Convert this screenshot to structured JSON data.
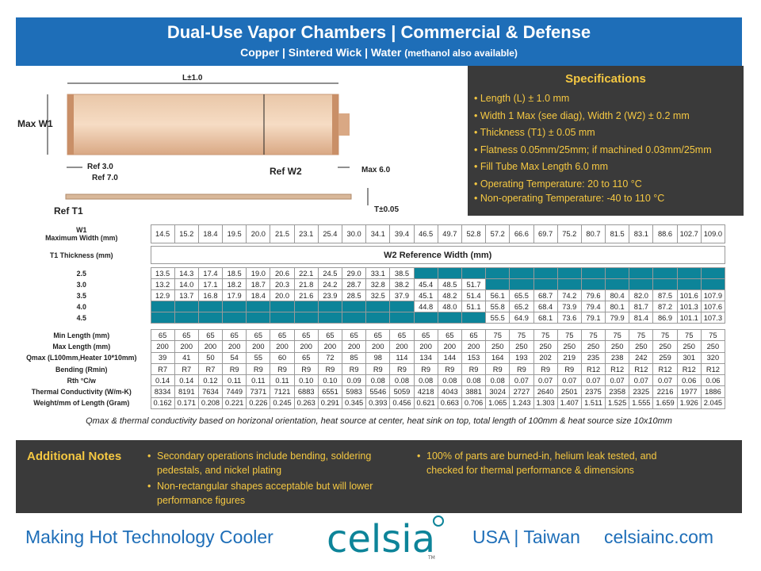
{
  "header": {
    "title": "Dual-Use Vapor Chambers | Commercial & Defense",
    "subtitle": "Copper | Sintered Wick | Water",
    "subtitle_note": "(methanol also available)"
  },
  "diagram": {
    "l": "L±1.0",
    "maxw1": "Max W1",
    "ref3": "Ref 3.0",
    "ref7": "Ref 7.0",
    "refw2": "Ref W2",
    "max6": "Max 6.0",
    "reft1": "Ref T1",
    "t005": "T±0.05"
  },
  "specs": {
    "title": "Specifications",
    "items": [
      "Length (L) ± 1.0 mm",
      "Width 1 Max (see diag), Width 2 (W2) ± 0.2 mm",
      "Thickness (T1) ± 0.05 mm",
      "Flatness 0.05mm/25mm; if machined  0.03mm/25mm",
      "Fill Tube Max Length 6.0 mm",
      "Operating Temperature: 20 to 110 °C",
      "Non-operating Temperature: -40 to 110 °C"
    ]
  },
  "table1": {
    "w1": "W1",
    "maxw": "Maximum Width (mm)",
    "values": [
      "14.5",
      "15.2",
      "18.4",
      "19.5",
      "20.0",
      "21.5",
      "23.1",
      "25.4",
      "30.0",
      "34.1",
      "39.4",
      "46.5",
      "49.7",
      "52.8",
      "57.2",
      "66.6",
      "69.7",
      "75.2",
      "80.7",
      "81.5",
      "83.1",
      "88.6",
      "102.7",
      "109.0"
    ]
  },
  "table2": {
    "t1": "T1 Thickness (mm)",
    "w2ref": "W2 Reference Width (mm)",
    "rows": [
      {
        "label": "2.5",
        "values": [
          "13.5",
          "14.3",
          "17.4",
          "18.5",
          "19.0",
          "20.6",
          "22.1",
          "24.5",
          "29.0",
          "33.1",
          "38.5",
          "",
          "",
          "",
          "",
          "",
          "",
          "",
          "",
          "",
          "",
          "",
          "",
          ""
        ]
      },
      {
        "label": "3.0",
        "values": [
          "13.2",
          "14.0",
          "17.1",
          "18.2",
          "18.7",
          "20.3",
          "21.8",
          "24.2",
          "28.7",
          "32.8",
          "38.2",
          "45.4",
          "48.5",
          "51.7",
          "",
          "",
          "",
          "",
          "",
          "",
          "",
          "",
          "",
          ""
        ]
      },
      {
        "label": "3.5",
        "values": [
          "12.9",
          "13.7",
          "16.8",
          "17.9",
          "18.4",
          "20.0",
          "21.6",
          "23.9",
          "28.5",
          "32.5",
          "37.9",
          "45.1",
          "48.2",
          "51.4",
          "56.1",
          "65.5",
          "68.7",
          "74.2",
          "79.6",
          "80.4",
          "82.0",
          "87.5",
          "101.6",
          "107.9"
        ]
      },
      {
        "label": "4.0",
        "values": [
          "",
          "",
          "",
          "",
          "",
          "",
          "",
          "",
          "",
          "",
          "",
          "44.8",
          "48.0",
          "51.1",
          "55.8",
          "65.2",
          "68.4",
          "73.9",
          "79.4",
          "80.1",
          "81.7",
          "87.2",
          "101.3",
          "107.6"
        ]
      },
      {
        "label": "4.5",
        "values": [
          "",
          "",
          "",
          "",
          "",
          "",
          "",
          "",
          "",
          "",
          "",
          "",
          "",
          "",
          "55.5",
          "64.9",
          "68.1",
          "73.6",
          "79.1",
          "79.9",
          "81.4",
          "86.9",
          "101.1",
          "107.3"
        ]
      }
    ]
  },
  "table3": {
    "rows": [
      {
        "label": "Min Length (mm)",
        "values": [
          "65",
          "65",
          "65",
          "65",
          "65",
          "65",
          "65",
          "65",
          "65",
          "65",
          "65",
          "65",
          "65",
          "65",
          "75",
          "75",
          "75",
          "75",
          "75",
          "75",
          "75",
          "75",
          "75",
          "75"
        ]
      },
      {
        "label": "Max Length (mm)",
        "values": [
          "200",
          "200",
          "200",
          "200",
          "200",
          "200",
          "200",
          "200",
          "200",
          "200",
          "200",
          "200",
          "200",
          "200",
          "250",
          "250",
          "250",
          "250",
          "250",
          "250",
          "250",
          "250",
          "250",
          "250"
        ]
      },
      {
        "label": "Qmax (L100mm,Heater 10*10mm)",
        "values": [
          "39",
          "41",
          "50",
          "54",
          "55",
          "60",
          "65",
          "72",
          "85",
          "98",
          "114",
          "134",
          "144",
          "153",
          "164",
          "193",
          "202",
          "219",
          "235",
          "238",
          "242",
          "259",
          "301",
          "320"
        ]
      },
      {
        "label": "Bending (Rmin)",
        "values": [
          "R7",
          "R7",
          "R7",
          "R9",
          "R9",
          "R9",
          "R9",
          "R9",
          "R9",
          "R9",
          "R9",
          "R9",
          "R9",
          "R9",
          "R9",
          "R9",
          "R9",
          "R9",
          "R12",
          "R12",
          "R12",
          "R12",
          "R12",
          "R12"
        ]
      },
      {
        "label": "Rth °C/w",
        "values": [
          "0.14",
          "0.14",
          "0.12",
          "0.11",
          "0.11",
          "0.11",
          "0.10",
          "0.10",
          "0.09",
          "0.08",
          "0.08",
          "0.08",
          "0.08",
          "0.08",
          "0.08",
          "0.07",
          "0.07",
          "0.07",
          "0.07",
          "0.07",
          "0.07",
          "0.07",
          "0.06",
          "0.06"
        ]
      },
      {
        "label": "Thermal Conductivity (W/m-K)",
        "values": [
          "8334",
          "8191",
          "7634",
          "7449",
          "7371",
          "7121",
          "6883",
          "6551",
          "5983",
          "5546",
          "5059",
          "4218",
          "4043",
          "3881",
          "3024",
          "2727",
          "2640",
          "2501",
          "2375",
          "2358",
          "2325",
          "2216",
          "1977",
          "1886"
        ]
      },
      {
        "label": "Weight/mm of Length (Gram)",
        "values": [
          "0.162",
          "0.171",
          "0.208",
          "0.221",
          "0.226",
          "0.245",
          "0.263",
          "0.291",
          "0.345",
          "0.393",
          "0.456",
          "0.621",
          "0.663",
          "0.706",
          "1.065",
          "1.243",
          "1.303",
          "1.407",
          "1.511",
          "1.525",
          "1.555",
          "1.659",
          "1.926",
          "2.045"
        ]
      }
    ]
  },
  "note": "Qmax & thermal conductivity based on horizonal orientation, heat source at center, heat sink on top, total length of 100mm & heat source size 10x10mm",
  "additional": {
    "title": "Additional Notes",
    "col1": [
      "Secondary operations include bending, soldering pedestals, and nickel plating",
      "Non-rectangular shapes acceptable but will lower performance figures"
    ],
    "col2": [
      "100% of parts are burned-in, helium leak tested, and checked for thermal performance & dimensions"
    ]
  },
  "footer": {
    "tagline": "Making Hot Technology Cooler",
    "logo": "celsia",
    "tm": "TM",
    "regions": "USA | Taiwan",
    "site": "celsiainc.com"
  },
  "colors": {
    "blue": "#1e6eb8",
    "teal": "#0d8499",
    "dark": "#3a3a3a",
    "yellow": "#f5c842"
  }
}
